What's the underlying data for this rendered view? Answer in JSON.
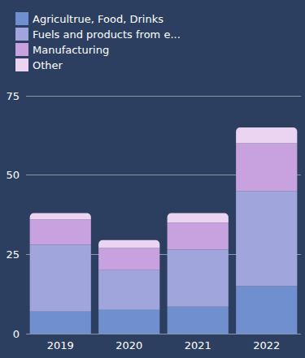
{
  "chart_data": {
    "type": "bar",
    "stacked": true,
    "grid": true,
    "legend": "top-left",
    "categories": [
      "2019",
      "2020",
      "2021",
      "2022"
    ],
    "series": [
      {
        "name": "Agricultrue, Food, Drinks",
        "color": "#6f8fce",
        "values": [
          7,
          7.5,
          8.5,
          15
        ]
      },
      {
        "name": "Fuels and products from e...",
        "color": "#a0a6dc",
        "values": [
          21,
          12.5,
          18,
          30
        ]
      },
      {
        "name": "Manufacturing",
        "color": "#c8a2df",
        "values": [
          8,
          7,
          8.5,
          15
        ]
      },
      {
        "name": "Other",
        "color": "#ebd4f1",
        "values": [
          2,
          2.5,
          3,
          5
        ]
      }
    ],
    "ylim": [
      0,
      75
    ],
    "yticks": [
      0,
      25,
      50,
      75
    ]
  }
}
